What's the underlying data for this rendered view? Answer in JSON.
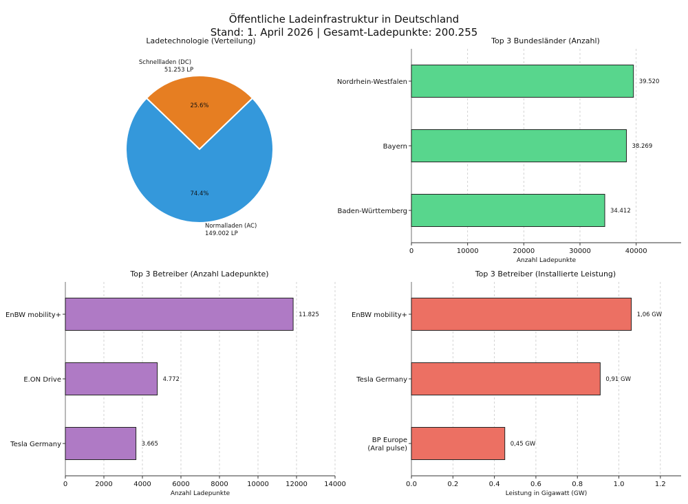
{
  "figure": {
    "title_line1": "Öffentliche Ladeinfrastruktur in Deutschland",
    "title_line2": "Stand: 1. April 2026 | Gesamt-Ladepunkte: 200.255"
  },
  "chart_data": [
    {
      "id": "technology",
      "type": "pie",
      "title": "Ladetechnologie (Verteilung)",
      "slices": [
        {
          "name": "Schnellladen (DC)",
          "value": 51253,
          "value_label": "51.253 LP",
          "pct_label": "25.6%",
          "color": "#e67e22"
        },
        {
          "name": "Normalladen (AC)",
          "value": 149002,
          "value_label": "149.002 LP",
          "pct_label": "74.4%",
          "color": "#3498db"
        }
      ]
    },
    {
      "id": "states",
      "type": "bar",
      "orientation": "horizontal",
      "title": "Top 3 Bundesländer (Anzahl)",
      "categories": [
        "Nordrhein-Westfalen",
        "Bayern",
        "Baden-Württemberg"
      ],
      "values": [
        39520,
        38269,
        34412
      ],
      "value_labels": [
        "39.520",
        "38.269",
        "34.412"
      ],
      "xlabel": "Anzahl Ladepunkte",
      "xlim": [
        0,
        48000
      ],
      "xticks": [
        0,
        10000,
        20000,
        30000,
        40000
      ],
      "color": "#58d68d",
      "grid": true
    },
    {
      "id": "operators_count",
      "type": "bar",
      "orientation": "horizontal",
      "title": "Top 3 Betreiber (Anzahl Ladepunkte)",
      "categories": [
        "EnBW mobility+",
        "E.ON Drive",
        "Tesla Germany"
      ],
      "values": [
        11825,
        4772,
        3665
      ],
      "value_labels": [
        "11.825",
        "4.772",
        "3.665"
      ],
      "xlabel": "Anzahl Ladepunkte",
      "xlim": [
        0,
        14000
      ],
      "xticks": [
        0,
        2000,
        4000,
        6000,
        8000,
        10000,
        12000,
        14000
      ],
      "color": "#af7ac5",
      "grid": true
    },
    {
      "id": "operators_power",
      "type": "bar",
      "orientation": "horizontal",
      "title": "Top 3 Betreiber (Installierte Leistung)",
      "categories": [
        "EnBW mobility+",
        "Tesla Germany",
        "BP Europe|(Aral pulse)"
      ],
      "values": [
        1.06,
        0.91,
        0.45
      ],
      "value_labels": [
        "1,06 GW",
        "0,91 GW",
        "0,45 GW"
      ],
      "xlabel": "Leistung in Gigawatt (GW)",
      "xlim": [
        0,
        1.3
      ],
      "xticks": [
        0.0,
        0.2,
        0.4,
        0.6,
        0.8,
        1.0,
        1.2
      ],
      "xtick_labels": [
        "0.0",
        "0.2",
        "0.4",
        "0.6",
        "0.8",
        "1.0",
        "1.2"
      ],
      "color": "#ec7063",
      "grid": true
    }
  ]
}
